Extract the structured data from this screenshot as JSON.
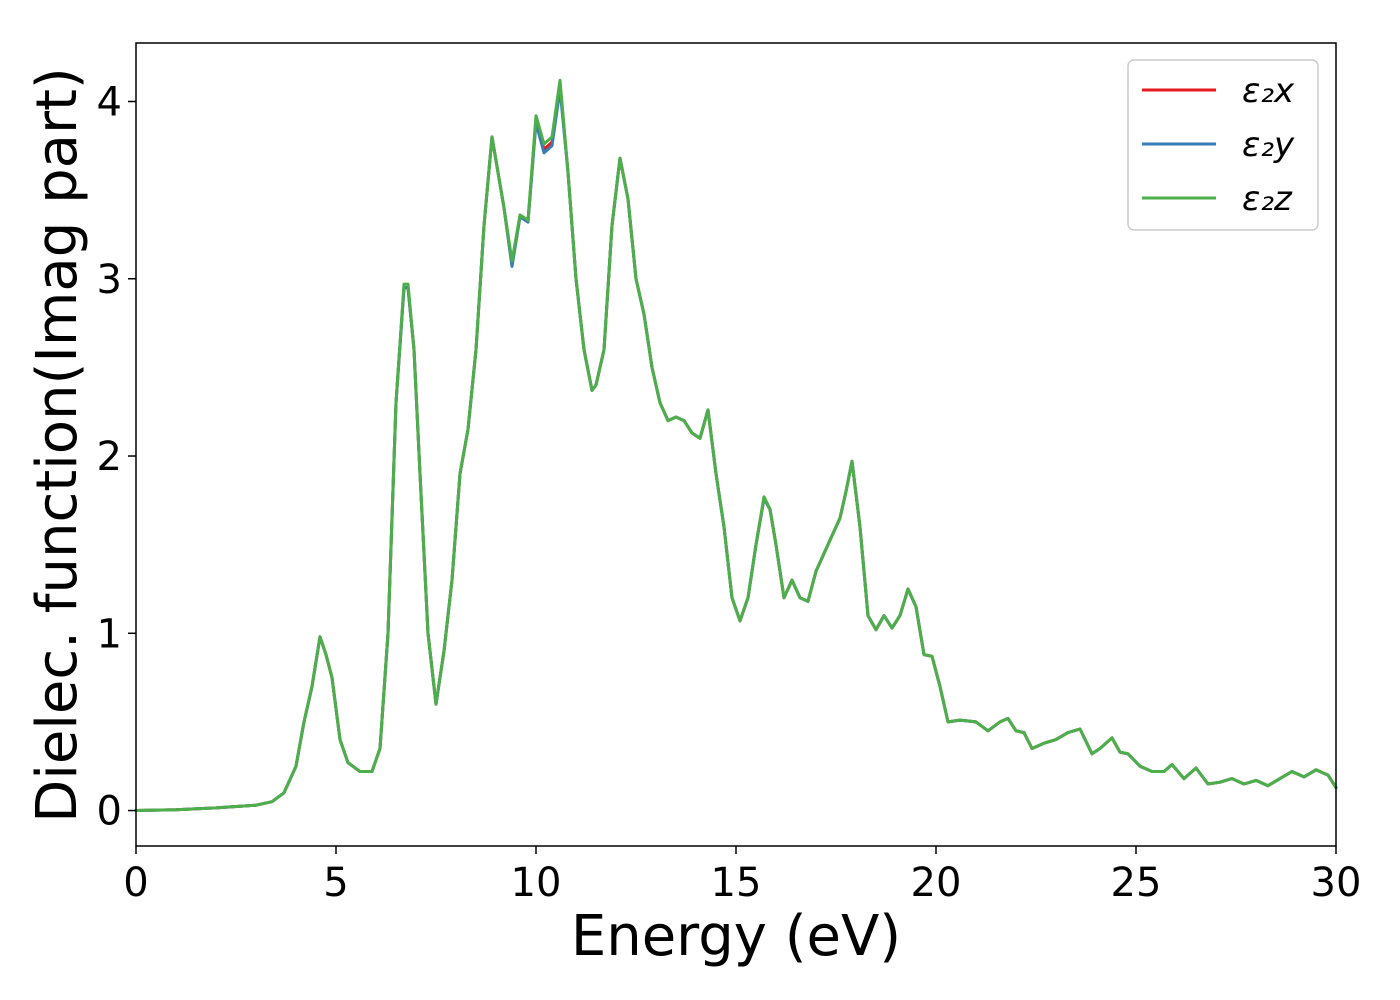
{
  "chart_data": {
    "type": "line",
    "title": "",
    "xlabel": "Energy (eV)",
    "ylabel": "Dielec. function(Imag part)",
    "xlim": [
      0,
      30
    ],
    "ylim": [
      -0.2,
      4.33
    ],
    "xticks": [
      "0",
      "5",
      "10",
      "15",
      "20",
      "25",
      "30"
    ],
    "yticks": [
      "0",
      "1",
      "2",
      "3",
      "4"
    ],
    "grid": false,
    "legend_position": "top-right",
    "x": [
      0.0,
      1.0,
      2.0,
      3.0,
      3.4,
      3.7,
      4.0,
      4.2,
      4.4,
      4.6,
      4.75,
      4.9,
      5.1,
      5.3,
      5.6,
      5.9,
      6.1,
      6.3,
      6.5,
      6.7,
      6.8,
      6.95,
      7.1,
      7.3,
      7.5,
      7.7,
      7.9,
      8.1,
      8.3,
      8.5,
      8.7,
      8.9,
      9.05,
      9.2,
      9.4,
      9.6,
      9.8,
      10.0,
      10.2,
      10.4,
      10.6,
      10.8,
      11.0,
      11.2,
      11.4,
      11.5,
      11.7,
      11.9,
      12.1,
      12.3,
      12.5,
      12.7,
      12.9,
      13.1,
      13.3,
      13.5,
      13.7,
      13.9,
      14.1,
      14.3,
      14.5,
      14.7,
      14.9,
      15.1,
      15.3,
      15.5,
      15.7,
      15.85,
      16.0,
      16.2,
      16.4,
      16.6,
      16.8,
      17.0,
      17.2,
      17.4,
      17.6,
      17.75,
      17.9,
      18.1,
      18.3,
      18.5,
      18.7,
      18.9,
      19.1,
      19.3,
      19.5,
      19.7,
      19.9,
      20.1,
      20.3,
      20.6,
      21.0,
      21.3,
      21.6,
      21.8,
      22.0,
      22.2,
      22.4,
      22.7,
      23.0,
      23.3,
      23.6,
      23.9,
      24.1,
      24.4,
      24.6,
      24.8,
      25.1,
      25.4,
      25.7,
      25.9,
      26.2,
      26.5,
      26.8,
      27.1,
      27.4,
      27.7,
      28.0,
      28.3,
      28.6,
      28.9,
      29.2,
      29.5,
      29.8,
      30.0
    ],
    "series": [
      {
        "name": "ε₂x",
        "color": "#e41a1c",
        "values": [
          0.0,
          0.005,
          0.015,
          0.03,
          0.05,
          0.1,
          0.25,
          0.5,
          0.7,
          0.98,
          0.88,
          0.75,
          0.4,
          0.27,
          0.22,
          0.22,
          0.35,
          1.0,
          2.3,
          2.95,
          2.95,
          2.6,
          1.9,
          1.0,
          0.6,
          0.9,
          1.3,
          1.9,
          2.15,
          2.6,
          3.3,
          3.8,
          3.6,
          3.4,
          3.08,
          3.35,
          3.32,
          3.9,
          3.73,
          3.77,
          4.1,
          3.6,
          3.0,
          2.6,
          2.37,
          2.4,
          2.6,
          3.3,
          3.68,
          3.45,
          3.0,
          2.8,
          2.5,
          2.3,
          2.2,
          2.22,
          2.2,
          2.13,
          2.1,
          2.26,
          1.9,
          1.6,
          1.2,
          1.07,
          1.2,
          1.5,
          1.76,
          1.7,
          1.5,
          1.2,
          1.3,
          1.2,
          1.18,
          1.35,
          1.45,
          1.55,
          1.65,
          1.8,
          1.97,
          1.6,
          1.1,
          1.02,
          1.1,
          1.03,
          1.1,
          1.25,
          1.15,
          0.88,
          0.87,
          0.7,
          0.5,
          0.51,
          0.5,
          0.45,
          0.5,
          0.52,
          0.45,
          0.44,
          0.35,
          0.38,
          0.4,
          0.44,
          0.46,
          0.32,
          0.35,
          0.41,
          0.33,
          0.32,
          0.25,
          0.22,
          0.22,
          0.26,
          0.18,
          0.24,
          0.15,
          0.16,
          0.18,
          0.15,
          0.17,
          0.14,
          0.18,
          0.22,
          0.19,
          0.23,
          0.2,
          0.13
        ]
      },
      {
        "name": "ε₂y",
        "color": "#377eb8",
        "values": [
          0.0,
          0.005,
          0.015,
          0.03,
          0.05,
          0.1,
          0.25,
          0.5,
          0.7,
          0.98,
          0.88,
          0.75,
          0.4,
          0.27,
          0.22,
          0.22,
          0.35,
          1.0,
          2.3,
          2.95,
          2.95,
          2.6,
          1.9,
          1.0,
          0.6,
          0.9,
          1.3,
          1.9,
          2.15,
          2.6,
          3.3,
          3.8,
          3.6,
          3.4,
          3.07,
          3.35,
          3.32,
          3.88,
          3.71,
          3.75,
          4.07,
          3.6,
          3.0,
          2.6,
          2.37,
          2.4,
          2.6,
          3.3,
          3.68,
          3.45,
          3.0,
          2.8,
          2.5,
          2.3,
          2.2,
          2.22,
          2.2,
          2.13,
          2.1,
          2.26,
          1.9,
          1.6,
          1.2,
          1.07,
          1.2,
          1.5,
          1.76,
          1.7,
          1.5,
          1.2,
          1.3,
          1.2,
          1.18,
          1.35,
          1.45,
          1.55,
          1.65,
          1.8,
          1.97,
          1.6,
          1.1,
          1.02,
          1.1,
          1.03,
          1.1,
          1.25,
          1.15,
          0.88,
          0.87,
          0.7,
          0.5,
          0.51,
          0.5,
          0.45,
          0.5,
          0.52,
          0.45,
          0.44,
          0.35,
          0.38,
          0.4,
          0.44,
          0.46,
          0.32,
          0.35,
          0.41,
          0.33,
          0.32,
          0.25,
          0.22,
          0.22,
          0.26,
          0.18,
          0.24,
          0.15,
          0.16,
          0.18,
          0.15,
          0.17,
          0.14,
          0.18,
          0.22,
          0.19,
          0.23,
          0.2,
          0.13
        ]
      },
      {
        "name": "ε₂z",
        "color": "#4daf4a",
        "values": [
          0.0,
          0.005,
          0.015,
          0.03,
          0.05,
          0.1,
          0.25,
          0.5,
          0.7,
          0.98,
          0.88,
          0.75,
          0.4,
          0.27,
          0.22,
          0.22,
          0.35,
          1.0,
          2.3,
          2.97,
          2.97,
          2.6,
          1.9,
          1.0,
          0.6,
          0.9,
          1.3,
          1.9,
          2.15,
          2.6,
          3.3,
          3.8,
          3.6,
          3.4,
          3.1,
          3.36,
          3.33,
          3.92,
          3.76,
          3.8,
          4.12,
          3.6,
          3.0,
          2.6,
          2.37,
          2.4,
          2.6,
          3.3,
          3.68,
          3.45,
          3.0,
          2.8,
          2.5,
          2.3,
          2.2,
          2.22,
          2.2,
          2.13,
          2.1,
          2.26,
          1.9,
          1.6,
          1.2,
          1.07,
          1.2,
          1.5,
          1.77,
          1.7,
          1.5,
          1.2,
          1.3,
          1.2,
          1.18,
          1.35,
          1.45,
          1.55,
          1.65,
          1.8,
          1.97,
          1.6,
          1.1,
          1.02,
          1.1,
          1.03,
          1.1,
          1.25,
          1.15,
          0.88,
          0.87,
          0.7,
          0.5,
          0.51,
          0.5,
          0.45,
          0.5,
          0.52,
          0.45,
          0.44,
          0.35,
          0.38,
          0.4,
          0.44,
          0.46,
          0.32,
          0.35,
          0.41,
          0.33,
          0.32,
          0.25,
          0.22,
          0.22,
          0.26,
          0.18,
          0.24,
          0.15,
          0.16,
          0.18,
          0.15,
          0.17,
          0.14,
          0.18,
          0.22,
          0.19,
          0.23,
          0.2,
          0.13
        ]
      }
    ]
  }
}
